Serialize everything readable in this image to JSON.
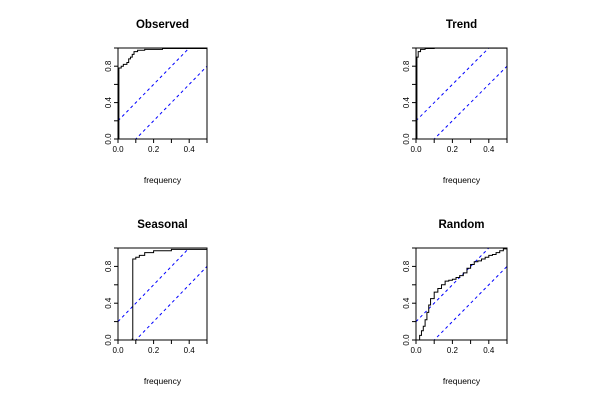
{
  "chart_data": [
    {
      "type": "line",
      "title": "Observed",
      "xlabel": "frequency",
      "ylabel": "",
      "xlim": [
        0,
        0.5
      ],
      "ylim": [
        0,
        1
      ],
      "x_ticks": [
        "0.0",
        "0.2",
        "0.4"
      ],
      "y_ticks": [
        "0.0",
        "0.4",
        "0.8"
      ],
      "colors": {
        "curve": "#000000",
        "bounds": "#0000ff"
      },
      "bounds_offset": 0.1,
      "series": [
        {
          "values": [
            [
              0,
              0
            ],
            [
              0.005,
              0.78
            ],
            [
              0.018,
              0.8
            ],
            [
              0.03,
              0.82
            ],
            [
              0.05,
              0.84
            ],
            [
              0.06,
              0.88
            ],
            [
              0.07,
              0.9
            ],
            [
              0.08,
              0.93
            ],
            [
              0.09,
              0.96
            ],
            [
              0.11,
              0.975
            ],
            [
              0.15,
              0.985
            ],
            [
              0.25,
              0.995
            ],
            [
              0.5,
              1.0
            ]
          ]
        }
      ]
    },
    {
      "type": "line",
      "title": "Trend",
      "xlabel": "frequency",
      "ylabel": "",
      "xlim": [
        0,
        0.5
      ],
      "ylim": [
        0,
        1
      ],
      "x_ticks": [
        "0.0",
        "0.2",
        "0.4"
      ],
      "y_ticks": [
        "0.0",
        "0.4",
        "0.8"
      ],
      "colors": {
        "curve": "#000000",
        "bounds": "#0000ff"
      },
      "bounds_offset": 0.1,
      "series": [
        {
          "values": [
            [
              0,
              0
            ],
            [
              0.005,
              0.9
            ],
            [
              0.012,
              0.96
            ],
            [
              0.025,
              0.985
            ],
            [
              0.05,
              0.995
            ],
            [
              0.1,
              0.998
            ],
            [
              0.5,
              1.0
            ]
          ]
        }
      ]
    },
    {
      "type": "line",
      "title": "Seasonal",
      "xlabel": "frequency",
      "ylabel": "",
      "xlim": [
        0,
        0.5
      ],
      "ylim": [
        0,
        1
      ],
      "x_ticks": [
        "0.0",
        "0.2",
        "0.4"
      ],
      "y_ticks": [
        "0.0",
        "0.4",
        "0.8"
      ],
      "colors": {
        "curve": "#000000",
        "bounds": "#0000ff"
      },
      "bounds_offset": 0.1,
      "series": [
        {
          "values": [
            [
              0,
              0
            ],
            [
              0.08,
              0.01
            ],
            [
              0.083,
              0.88
            ],
            [
              0.1,
              0.9
            ],
            [
              0.12,
              0.92
            ],
            [
              0.15,
              0.95
            ],
            [
              0.2,
              0.97
            ],
            [
              0.3,
              0.985
            ],
            [
              0.5,
              1.0
            ]
          ]
        }
      ]
    },
    {
      "type": "line",
      "title": "Random",
      "xlabel": "frequency",
      "ylabel": "",
      "xlim": [
        0,
        0.5
      ],
      "ylim": [
        0,
        1
      ],
      "x_ticks": [
        "0.0",
        "0.2",
        "0.4"
      ],
      "y_ticks": [
        "0.0",
        "0.4",
        "0.8"
      ],
      "colors": {
        "curve": "#000000",
        "bounds": "#0000ff"
      },
      "bounds_offset": 0.1,
      "series": [
        {
          "values": [
            [
              0,
              0
            ],
            [
              0.02,
              0.05
            ],
            [
              0.03,
              0.1
            ],
            [
              0.04,
              0.15
            ],
            [
              0.05,
              0.22
            ],
            [
              0.06,
              0.3
            ],
            [
              0.07,
              0.38
            ],
            [
              0.08,
              0.45
            ],
            [
              0.1,
              0.52
            ],
            [
              0.12,
              0.56
            ],
            [
              0.14,
              0.6
            ],
            [
              0.16,
              0.64
            ],
            [
              0.18,
              0.65
            ],
            [
              0.2,
              0.66
            ],
            [
              0.22,
              0.68
            ],
            [
              0.24,
              0.7
            ],
            [
              0.26,
              0.73
            ],
            [
              0.28,
              0.78
            ],
            [
              0.3,
              0.82
            ],
            [
              0.32,
              0.85
            ],
            [
              0.34,
              0.86
            ],
            [
              0.36,
              0.88
            ],
            [
              0.38,
              0.9
            ],
            [
              0.4,
              0.92
            ],
            [
              0.42,
              0.93
            ],
            [
              0.44,
              0.95
            ],
            [
              0.46,
              0.97
            ],
            [
              0.48,
              0.99
            ],
            [
              0.5,
              1.0
            ]
          ]
        }
      ]
    }
  ]
}
